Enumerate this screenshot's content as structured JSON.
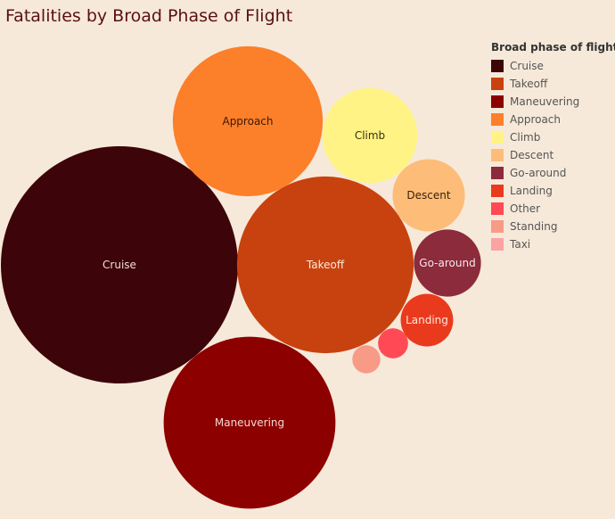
{
  "title": "Fatalities by Broad Phase of Flight",
  "legend": {
    "title": "Broad phase of flight"
  },
  "chart_data": {
    "type": "bubble",
    "title": "Fatalities by Broad Phase of Flight",
    "legend_title": "Broad phase of flight",
    "legend_position": "top-right",
    "series": [
      {
        "name": "Cruise",
        "value": 100,
        "color": "#3d0509",
        "label_color": "#f3ddd2"
      },
      {
        "name": "Takeoff",
        "value": 55.5,
        "color": "#c8420f",
        "label_color": "#fde9dc"
      },
      {
        "name": "Maneuvering",
        "value": 52.5,
        "color": "#8c0000",
        "label_color": "#f6d6d0"
      },
      {
        "name": "Approach",
        "value": 40,
        "color": "#fc7f2a",
        "label_color": "#3a1a08"
      },
      {
        "name": "Climb",
        "value": 16,
        "color": "#fff385",
        "label_color": "#3a3010"
      },
      {
        "name": "Descent",
        "value": 9.3,
        "color": "#fdbd78",
        "label_color": "#3a2008"
      },
      {
        "name": "Go-around",
        "value": 8,
        "color": "#8b2b3b",
        "label_color": "#fbe6ea"
      },
      {
        "name": "Landing",
        "value": 4.9,
        "color": "#ea3a1d",
        "label_color": "#fde6dd"
      },
      {
        "name": "Other",
        "value": 1.6,
        "color": "#ff4a55",
        "label_color": "#ffffff"
      },
      {
        "name": "Standing",
        "value": 1.4,
        "color": "#f79a86",
        "label_color": "#ffffff"
      },
      {
        "name": "Taxi",
        "value": 0,
        "color": "#fba2a2",
        "label_color": "#ffffff"
      }
    ]
  }
}
